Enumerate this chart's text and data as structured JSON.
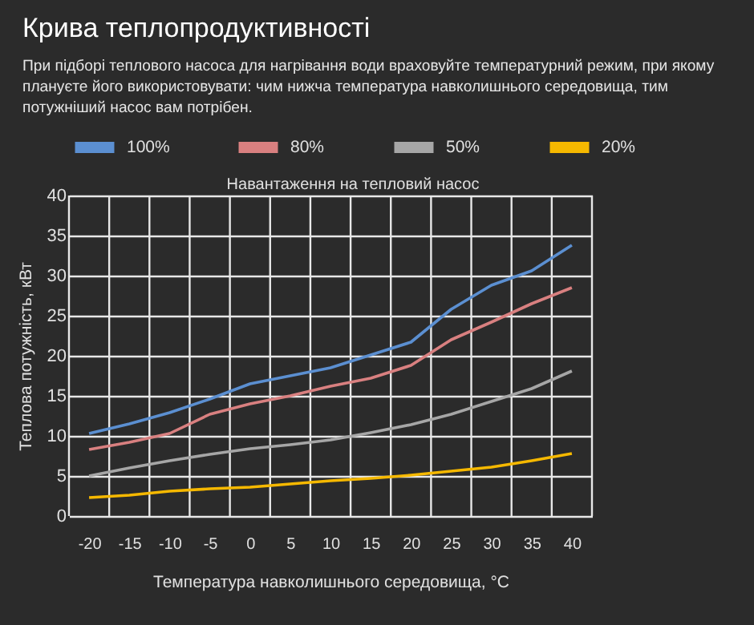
{
  "chart_data": {
    "type": "line",
    "title": "Крива теплопродуктивності",
    "subtitle": "При підборі теплового насоса для нагрівання води враховуйте температурний режим, при якому плануєте його використовувати: чим нижча температура навколишнього середовища, тим потужніший насос вам потрібен.",
    "xlabel": "Температура навколишнього середовища, °C",
    "ylabel": "Теплова потужність, кВт",
    "legend_title": "Навантаження на тепловий насос",
    "legend": "top",
    "grid": true,
    "marker": "none",
    "line_style": "solid",
    "categories": [
      "-20",
      "-15",
      "-10",
      "-5",
      "0",
      "5",
      "10",
      "15",
      "20",
      "25",
      "30",
      "35",
      "40"
    ],
    "ylim": [
      0,
      40
    ],
    "yticks": [
      0,
      5,
      10,
      15,
      20,
      25,
      30,
      35,
      40
    ],
    "series": [
      {
        "name": "100%",
        "color": "#5b8fd1",
        "values": [
          10.3,
          11.5,
          12.9,
          14.6,
          16.5,
          17.5,
          18.5,
          20.1,
          21.7,
          25.8,
          28.8,
          30.6,
          33.8
        ]
      },
      {
        "name": "80%",
        "color": "#d98080",
        "values": [
          8.3,
          9.2,
          10.3,
          12.7,
          14,
          15,
          16.2,
          17.2,
          18.8,
          22,
          24.2,
          26.5,
          28.5
        ]
      },
      {
        "name": "50%",
        "color": "#a6a6a6",
        "values": [
          5,
          6,
          6.9,
          7.7,
          8.4,
          8.9,
          9.5,
          10.4,
          11.4,
          12.7,
          14.3,
          15.9,
          18.1
        ]
      },
      {
        "name": "20%",
        "color": "#f5b800",
        "values": [
          2.3,
          2.6,
          3.1,
          3.4,
          3.6,
          4,
          4.4,
          4.7,
          5.1,
          5.6,
          6.1,
          6.9,
          7.8
        ]
      }
    ]
  }
}
